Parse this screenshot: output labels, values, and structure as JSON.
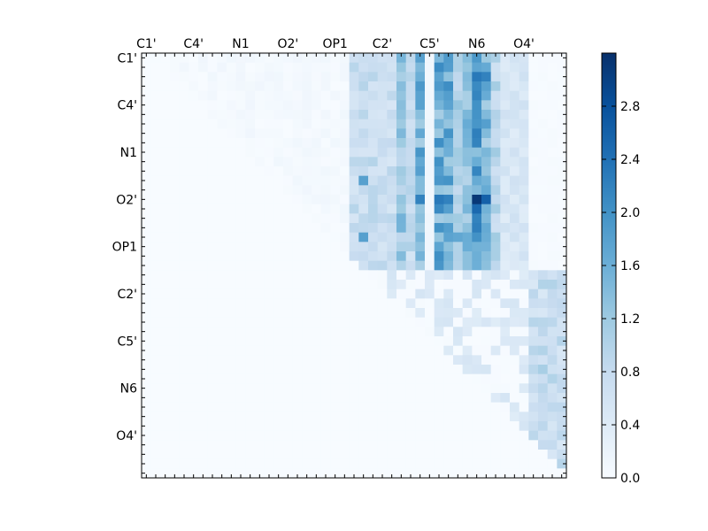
{
  "chart_data": {
    "type": "heatmap",
    "title": "",
    "xlabel": "",
    "ylabel": "",
    "grid": false,
    "n": 45,
    "colormap": "Blues",
    "colors": {
      "low": "#f7fbff",
      "high": "#08306b"
    },
    "tick_labels": [
      "C1'",
      "C4'",
      "N1",
      "O2'",
      "OP1",
      "C2'",
      "C5'",
      "N6",
      "O4'"
    ],
    "tick_positions": [
      0.5,
      5.5,
      10.5,
      15.5,
      20.5,
      25.5,
      30.5,
      35.5,
      40.5
    ],
    "x_tick_label_position": "top",
    "y_tick_label_position": "left",
    "colorbar": {
      "vmin": 0.0,
      "vmax": 3.2,
      "ticks": [
        0.0,
        0.4,
        0.8,
        1.2,
        1.6,
        2.0,
        2.4,
        2.8
      ],
      "tick_labels": [
        "0.0",
        "0.4",
        "0.8",
        "1.2",
        "1.6",
        "2.0",
        "2.4",
        "2.8"
      ],
      "placement": "right"
    },
    "upper_triangle_only": true,
    "column_profile": [
      {
        "cols": [
          22,
          23,
          24
        ],
        "level": 0.75
      },
      {
        "cols": [
          25,
          26
        ],
        "level": 0.7
      },
      {
        "cols": [
          27
        ],
        "level": 1.2
      },
      {
        "cols": [
          28
        ],
        "level": 0.8
      },
      {
        "cols": [
          29
        ],
        "level": 1.5
      },
      {
        "cols": [
          30
        ],
        "level": 0.1
      },
      {
        "cols": [
          31,
          32
        ],
        "level": 1.6
      },
      {
        "cols": [
          33
        ],
        "level": 1.0
      },
      {
        "cols": [
          34
        ],
        "level": 1.3
      },
      {
        "cols": [
          35
        ],
        "level": 1.8
      },
      {
        "cols": [
          36
        ],
        "level": 1.4
      },
      {
        "cols": [
          37
        ],
        "level": 0.9
      },
      {
        "cols": [
          38,
          39,
          40
        ],
        "level": 0.5
      }
    ],
    "highlights": [
      {
        "row": 15,
        "col": 35,
        "value": 3.1
      },
      {
        "row": 15,
        "col": 36,
        "value": 2.6
      },
      {
        "row": 16,
        "col": 35,
        "value": 2.5
      },
      {
        "row": 15,
        "col": 31,
        "value": 2.3
      },
      {
        "row": 15,
        "col": 32,
        "value": 2.2
      },
      {
        "row": 15,
        "col": 29,
        "value": 2.2
      },
      {
        "row": 16,
        "col": 31,
        "value": 2.1
      },
      {
        "row": 2,
        "col": 35,
        "value": 2.3
      },
      {
        "row": 2,
        "col": 36,
        "value": 2.2
      },
      {
        "row": 3,
        "col": 35,
        "value": 2.1
      },
      {
        "row": 5,
        "col": 35,
        "value": 2.0
      },
      {
        "row": 0,
        "col": 35,
        "value": 1.9
      },
      {
        "row": 0,
        "col": 29,
        "value": 1.8
      },
      {
        "row": 13,
        "col": 23,
        "value": 1.8
      },
      {
        "row": 19,
        "col": 23,
        "value": 1.8
      },
      {
        "row": 19,
        "col": 33,
        "value": 1.7
      },
      {
        "row": 24,
        "col": 43,
        "value": 1.0
      },
      {
        "row": 24,
        "col": 42,
        "value": 1.0
      },
      {
        "row": 31,
        "col": 42,
        "value": 1.0
      },
      {
        "row": 33,
        "col": 42,
        "value": 1.1
      },
      {
        "row": 34,
        "col": 43,
        "value": 1.0
      }
    ],
    "lower_block": {
      "rows_from": 23,
      "cols_from": 25,
      "level": 0.35
    }
  }
}
